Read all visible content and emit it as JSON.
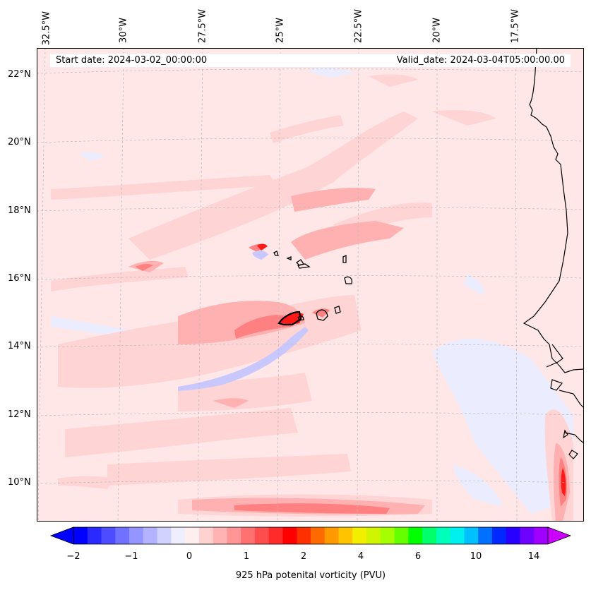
{
  "map": {
    "title_left": "Start date: 2024-03-02_00:00:00",
    "title_right": "Valid_date: 2024-03-04T05:00:00.00",
    "variable": "925 hPa potenital vorticity (PVU)",
    "lon_labels": [
      "32.5°W",
      "30°W",
      "27.5°W",
      "25°W",
      "22.5°W",
      "20°W",
      "17.5°W"
    ],
    "lat_labels": [
      "22°N",
      "20°N",
      "18°N",
      "16°N",
      "14°N",
      "12°N",
      "10°N"
    ],
    "colors": {
      "background": "#ffe7e7",
      "land_outline": "#000000",
      "negative_light": "#ececff",
      "negative_mid": "#c8c8ff",
      "positive_light": "#ffd4d4",
      "positive_mid": "#ffb0b0",
      "positive_strong": "#ff8080",
      "positive_peak": "#ff1a1a",
      "gridline": "#bbbbbb"
    }
  },
  "colorbar": {
    "label": "925 hPa potenital vorticity (PVU)",
    "tick_labels": [
      "−2",
      "−1",
      "0",
      "1",
      "2",
      "4",
      "6",
      "10",
      "14"
    ],
    "extend": "both",
    "colors": [
      "#0000ff",
      "#2a2aff",
      "#4d4dff",
      "#7171ff",
      "#9595ff",
      "#b3b3ff",
      "#d2d2ff",
      "#eeeeff",
      "#ffeeee",
      "#ffd2d2",
      "#ffb3b3",
      "#ff9595",
      "#ff7171",
      "#ff4d4d",
      "#ff2a2a",
      "#ff0000",
      "#ff3000",
      "#ff6a00",
      "#ff9900",
      "#ffc400",
      "#f2ee00",
      "#d0f500",
      "#a6ff00",
      "#66ff00",
      "#00ff00",
      "#00ff6a",
      "#00ffb8",
      "#00f0f0",
      "#00c0ff",
      "#0070ff",
      "#0028ff",
      "#2800ff",
      "#7000ff",
      "#a000ff"
    ],
    "end_low": "#0000ff",
    "end_high": "#cc00ff"
  }
}
